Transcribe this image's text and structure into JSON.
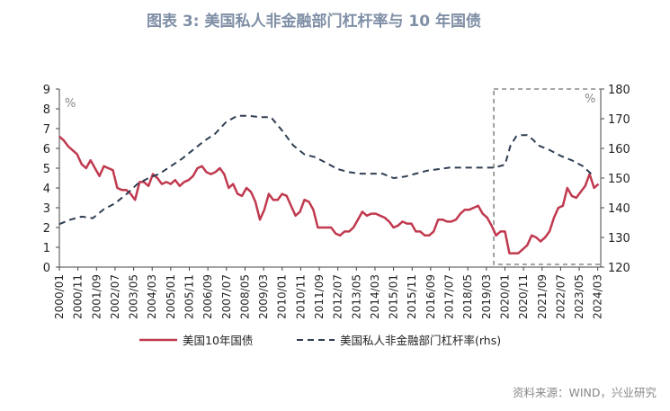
{
  "chart_data": {
    "type": "line",
    "title": "图表 3:  美国私人非金融部门杠杆率与 10 年国债",
    "left_unit": "%",
    "right_unit": "%",
    "source": "资料来源：WIND，兴业研究",
    "y_left": {
      "min": 0,
      "max": 9,
      "ticks": [
        "0",
        "1",
        "2",
        "3",
        "4",
        "5",
        "6",
        "7",
        "8",
        "9"
      ]
    },
    "y_right": {
      "min": 120,
      "max": 180,
      "ticks": [
        "120",
        "130",
        "140",
        "150",
        "160",
        "170",
        "180"
      ]
    },
    "x_ticks": [
      "2000/01",
      "2000/11",
      "2001/09",
      "2002/07",
      "2003/05",
      "2004/03",
      "2005/01",
      "2005/11",
      "2006/09",
      "2007/07",
      "2008/05",
      "2009/03",
      "2010/01",
      "2010/11",
      "2011/09",
      "2012/07",
      "2013/05",
      "2014/03",
      "2015/01",
      "2015/11",
      "2016/09",
      "2017/07",
      "2018/05",
      "2019/03",
      "2020/01",
      "2020/11",
      "2021/09",
      "2022/07",
      "2023/05",
      "2024/03"
    ],
    "series": [
      {
        "name": "美国10年国债",
        "axis": "left",
        "color": "#c0394f",
        "style": "solid",
        "x": [
          2000.0,
          2000.2,
          2000.4,
          2000.6,
          2000.8,
          2001.0,
          2001.2,
          2001.4,
          2001.6,
          2001.8,
          2002.0,
          2002.2,
          2002.4,
          2002.6,
          2002.8,
          2003.0,
          2003.2,
          2003.4,
          2003.6,
          2003.8,
          2004.0,
          2004.2,
          2004.4,
          2004.6,
          2004.8,
          2005.0,
          2005.2,
          2005.4,
          2005.6,
          2005.8,
          2006.0,
          2006.2,
          2006.4,
          2006.6,
          2006.8,
          2007.0,
          2007.2,
          2007.4,
          2007.6,
          2007.8,
          2008.0,
          2008.2,
          2008.4,
          2008.6,
          2008.8,
          2009.0,
          2009.2,
          2009.4,
          2009.6,
          2009.8,
          2010.0,
          2010.2,
          2010.4,
          2010.6,
          2010.8,
          2011.0,
          2011.2,
          2011.4,
          2011.6,
          2011.8,
          2012.0,
          2012.2,
          2012.4,
          2012.6,
          2012.8,
          2013.0,
          2013.2,
          2013.4,
          2013.6,
          2013.8,
          2014.0,
          2014.2,
          2014.4,
          2014.6,
          2014.8,
          2015.0,
          2015.2,
          2015.4,
          2015.6,
          2015.8,
          2016.0,
          2016.2,
          2016.4,
          2016.6,
          2016.8,
          2017.0,
          2017.2,
          2017.4,
          2017.6,
          2017.8,
          2018.0,
          2018.2,
          2018.4,
          2018.6,
          2018.8,
          2019.0,
          2019.2,
          2019.4,
          2019.6,
          2019.8,
          2020.0,
          2020.2,
          2020.4,
          2020.6,
          2020.8,
          2021.0,
          2021.2,
          2021.4,
          2021.6,
          2021.8,
          2022.0,
          2022.2,
          2022.4,
          2022.6,
          2022.8,
          2023.0,
          2023.2,
          2023.4,
          2023.6,
          2023.8,
          2024.0,
          2024.2
        ],
        "values": [
          6.6,
          6.4,
          6.1,
          5.9,
          5.7,
          5.2,
          5.0,
          5.4,
          5.0,
          4.6,
          5.1,
          5.0,
          4.9,
          4.0,
          3.9,
          3.9,
          3.7,
          3.4,
          4.3,
          4.3,
          4.1,
          4.7,
          4.5,
          4.2,
          4.3,
          4.2,
          4.4,
          4.1,
          4.3,
          4.4,
          4.6,
          5.0,
          5.1,
          4.8,
          4.7,
          4.8,
          5.0,
          4.7,
          4.0,
          4.2,
          3.7,
          3.6,
          4.0,
          3.8,
          3.3,
          2.4,
          2.9,
          3.7,
          3.4,
          3.4,
          3.7,
          3.6,
          3.1,
          2.6,
          2.8,
          3.4,
          3.3,
          2.9,
          2.0,
          2.0,
          2.0,
          2.0,
          1.7,
          1.6,
          1.8,
          1.8,
          2.0,
          2.4,
          2.8,
          2.6,
          2.7,
          2.7,
          2.6,
          2.5,
          2.3,
          2.0,
          2.1,
          2.3,
          2.2,
          2.2,
          1.8,
          1.8,
          1.6,
          1.6,
          1.8,
          2.4,
          2.4,
          2.3,
          2.3,
          2.4,
          2.7,
          2.9,
          2.9,
          3.0,
          3.1,
          2.7,
          2.5,
          2.1,
          1.6,
          1.8,
          1.8,
          0.7,
          0.7,
          0.7,
          0.9,
          1.1,
          1.6,
          1.5,
          1.3,
          1.5,
          1.8,
          2.5,
          3.0,
          3.1,
          4.0,
          3.6,
          3.5,
          3.8,
          4.1,
          4.7,
          4.0,
          4.2
        ]
      },
      {
        "name": "美国私人非金融部门杠杆率(rhs)",
        "axis": "right",
        "color": "#2f3e52",
        "style": "dashed",
        "x": [
          2000.0,
          2000.5,
          2001.0,
          2001.5,
          2002.0,
          2002.5,
          2003.0,
          2003.5,
          2004.0,
          2004.5,
          2005.0,
          2005.5,
          2006.0,
          2006.5,
          2007.0,
          2007.5,
          2008.0,
          2008.5,
          2009.0,
          2009.5,
          2010.0,
          2010.5,
          2011.0,
          2011.5,
          2012.0,
          2012.5,
          2013.0,
          2013.5,
          2014.0,
          2014.5,
          2015.0,
          2015.5,
          2016.0,
          2016.5,
          2017.0,
          2017.5,
          2018.0,
          2018.5,
          2019.0,
          2019.5,
          2020.0,
          2020.25,
          2020.5,
          2020.75,
          2021.0,
          2021.25,
          2021.5,
          2022.0,
          2022.5,
          2023.0,
          2023.5,
          2024.0
        ],
        "values": [
          134.5,
          136,
          137,
          136.5,
          139.5,
          141.5,
          144.5,
          148,
          150,
          151.5,
          154,
          156.5,
          159.5,
          162.5,
          165,
          169,
          171,
          171,
          170.5,
          170.5,
          166,
          161,
          158,
          157,
          155,
          153,
          152,
          151.5,
          151.5,
          151.5,
          150,
          150.5,
          151.5,
          152.5,
          153,
          153.5,
          153.5,
          153.5,
          153.5,
          153.5,
          154.5,
          161,
          164,
          164.5,
          164.5,
          163,
          161,
          159.5,
          157.5,
          156,
          154,
          150.5
        ]
      }
    ],
    "highlight_box": {
      "x_start": 2019.5,
      "x_end": 2024.3
    },
    "legend": [
      "美国10年国债",
      "美国私人非金融部门杠杆率(rhs)"
    ]
  }
}
